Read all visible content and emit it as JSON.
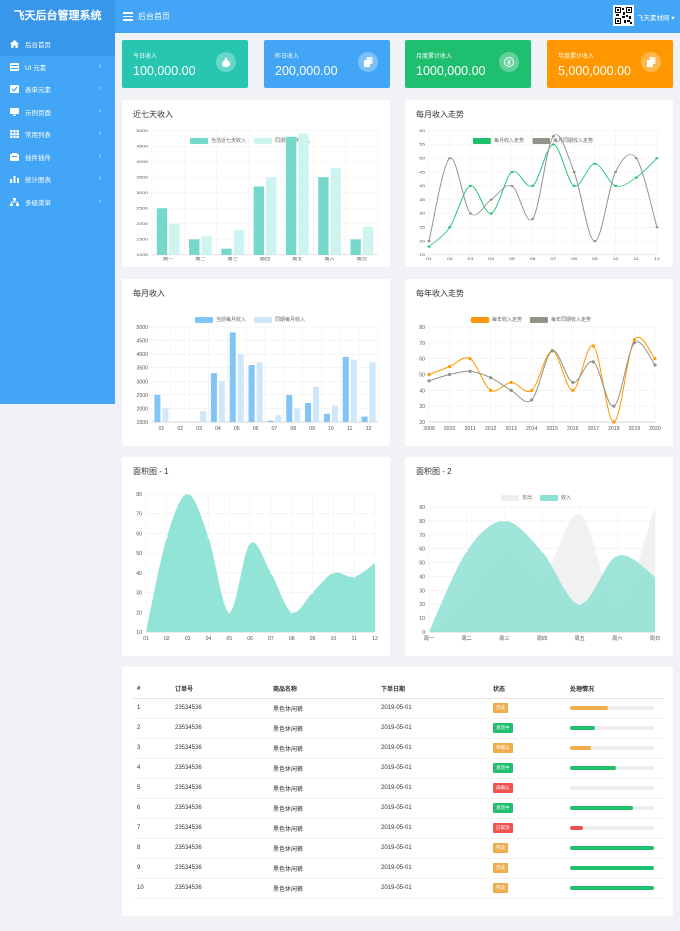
{
  "app": {
    "title": "飞天后台管理系统",
    "breadcrumb": "后台首页",
    "user": "飞天素材网"
  },
  "sidebar": {
    "items": [
      {
        "label": "后台首页",
        "icon": "home-icon",
        "arrow": false
      },
      {
        "label": "UI 元素",
        "icon": "ui-icon",
        "arrow": true
      },
      {
        "label": "表单元素",
        "icon": "form-icon",
        "arrow": true
      },
      {
        "label": "示例页面",
        "icon": "monitor-icon",
        "arrow": true
      },
      {
        "label": "常用列表",
        "icon": "table-icon",
        "arrow": true
      },
      {
        "label": "插件插件",
        "icon": "plugin-icon",
        "arrow": true
      },
      {
        "label": "统计图表",
        "icon": "chart-icon",
        "arrow": true
      },
      {
        "label": "多级菜单",
        "icon": "sitemap-icon",
        "arrow": true
      }
    ]
  },
  "stats": [
    {
      "label": "今日收入",
      "value": "100,000.00",
      "color": "#26c6b0",
      "icon": "money-bag-icon"
    },
    {
      "label": "昨日收入",
      "value": "200,000.00",
      "color": "#42a5f5",
      "icon": "copy-icon"
    },
    {
      "label": "月度累计收入",
      "value": "1000,000.00",
      "color": "#1ebf6f",
      "icon": "yen-icon"
    },
    {
      "label": "年度累计收入",
      "value": "5,000,000.00",
      "color": "#ff9800",
      "icon": "copy-icon"
    }
  ],
  "chart_data": [
    {
      "type": "bar",
      "title": "近七天收入",
      "categories": [
        "周一",
        "周二",
        "周三",
        "周四",
        "周五",
        "周六",
        "周日"
      ],
      "series": [
        {
          "name": "当前近七天收入",
          "values": [
            2500,
            1500,
            1200,
            3200,
            4800,
            3500,
            1500
          ],
          "color": "#74d8ca"
        },
        {
          "name": "同期近七天收入",
          "values": [
            2000,
            1600,
            1800,
            3500,
            4900,
            3800,
            1900
          ],
          "color": "#cdf4ee"
        }
      ],
      "ylim": [
        1000,
        5000
      ],
      "yticks": [
        1000,
        1500,
        2000,
        2500,
        3000,
        3500,
        4000,
        4500,
        5000
      ]
    },
    {
      "type": "line",
      "title": "每月收入走势",
      "categories": [
        "01",
        "02",
        "03",
        "04",
        "05",
        "06",
        "07",
        "08",
        "09",
        "10",
        "11",
        "12"
      ],
      "series": [
        {
          "name": "每月收入走势",
          "values": [
            18,
            25,
            40,
            30,
            45,
            40,
            55,
            40,
            48,
            40,
            43,
            50
          ],
          "color": "#1ebf6f"
        },
        {
          "name": "每月同期收入走势",
          "values": [
            20,
            50,
            30,
            35,
            40,
            28,
            58,
            45,
            20,
            45,
            50,
            25
          ],
          "color": "#909388"
        }
      ],
      "ylim": [
        15,
        60
      ],
      "yticks": [
        15,
        20,
        25,
        30,
        35,
        40,
        45,
        50,
        55,
        60
      ]
    },
    {
      "type": "bar",
      "title": "每月收入",
      "categories": [
        "01",
        "02",
        "03",
        "04",
        "05",
        "06",
        "07",
        "08",
        "09",
        "10",
        "11",
        "12"
      ],
      "series": [
        {
          "name": "当前每月收入",
          "values": [
            2500,
            1500,
            1500,
            3300,
            4800,
            3600,
            1550,
            2500,
            2200,
            1800,
            3900,
            1700
          ],
          "color": "#81c4f6"
        },
        {
          "name": "同期每月收入",
          "values": [
            2000,
            1500,
            1900,
            3000,
            4000,
            3700,
            1750,
            2000,
            2800,
            2100,
            3800,
            3700
          ],
          "color": "#cfe7fb"
        }
      ],
      "ylim": [
        1500,
        5000
      ],
      "yticks": [
        1500,
        2000,
        2500,
        3000,
        3500,
        4000,
        4500,
        5000
      ]
    },
    {
      "type": "line",
      "title": "每年收入走势",
      "categories": [
        "2009",
        "2010",
        "2011",
        "2012",
        "2013",
        "2014",
        "2015",
        "2016",
        "2017",
        "2018",
        "2019",
        "2020"
      ],
      "series": [
        {
          "name": "每年收入走势",
          "values": [
            50,
            55,
            60,
            40,
            45,
            40,
            65,
            40,
            68,
            20,
            72,
            60
          ],
          "color": "#ff9800"
        },
        {
          "name": "每年同期收入走势",
          "values": [
            46,
            50,
            52,
            48,
            40,
            34,
            65,
            45,
            58,
            30,
            70,
            56
          ],
          "color": "#909388"
        }
      ],
      "ylim": [
        20,
        80
      ],
      "yticks": [
        20,
        30,
        40,
        50,
        60,
        70,
        80
      ]
    },
    {
      "type": "area",
      "title": "面积图 - 1",
      "categories": [
        "01",
        "02",
        "03",
        "04",
        "05",
        "06",
        "07",
        "08",
        "09",
        "10",
        "11",
        "12"
      ],
      "series": [
        {
          "name": "",
          "values": [
            10,
            58,
            80,
            58,
            20,
            55,
            40,
            20,
            30,
            40,
            38,
            45
          ],
          "color": "#7fdfd0"
        }
      ],
      "ylim": [
        10,
        80
      ],
      "yticks": [
        10,
        20,
        30,
        40,
        50,
        60,
        70,
        80
      ]
    },
    {
      "type": "area",
      "title": "面积图 - 2",
      "categories": [
        "周一",
        "周二",
        "周三",
        "周四",
        "周五",
        "周六",
        "周日"
      ],
      "series": [
        {
          "name": "支出",
          "values": [
            0,
            25,
            60,
            40,
            85,
            20,
            90
          ],
          "color": "#eeeeee"
        },
        {
          "name": "收入",
          "values": [
            0,
            58,
            80,
            58,
            20,
            55,
            40
          ],
          "color": "#8ee0d4"
        }
      ],
      "ylim": [
        0,
        90
      ],
      "yticks": [
        0,
        10,
        20,
        30,
        40,
        50,
        60,
        70,
        80,
        90
      ]
    }
  ],
  "table": {
    "headers": [
      "#",
      "订单号",
      "商品名称",
      "下单日期",
      "状态",
      "处理情况"
    ],
    "rows": [
      {
        "n": "1",
        "order": "23534536",
        "name": "黑色休闲裤",
        "date": "2019-05-01",
        "status": "完成",
        "scolor": "#f0ad4e",
        "prog": 45,
        "pcolor": "#f0ad4e"
      },
      {
        "n": "2",
        "order": "23534536",
        "name": "黑色休闲裤",
        "date": "2019-05-01",
        "status": "发货中",
        "scolor": "#1ebf6f",
        "prog": 30,
        "pcolor": "#1ebf6f"
      },
      {
        "n": "3",
        "order": "23534536",
        "name": "黑色休闲裤",
        "date": "2019-05-01",
        "status": "待确认",
        "scolor": "#f0ad4e",
        "prog": 25,
        "pcolor": "#f0ad4e"
      },
      {
        "n": "4",
        "order": "23534536",
        "name": "黑色休闲裤",
        "date": "2019-05-01",
        "status": "发货中",
        "scolor": "#1ebf6f",
        "prog": 55,
        "pcolor": "#1ebf6f"
      },
      {
        "n": "5",
        "order": "23534536",
        "name": "黑色休闲裤",
        "date": "2019-05-01",
        "status": "再确认",
        "scolor": "#ef5350",
        "prog": 0,
        "pcolor": "#ef5350"
      },
      {
        "n": "6",
        "order": "23534536",
        "name": "黑色休闲裤",
        "date": "2019-05-01",
        "status": "发货中",
        "scolor": "#1ebf6f",
        "prog": 75,
        "pcolor": "#1ebf6f"
      },
      {
        "n": "7",
        "order": "23534536",
        "name": "黑色休闲裤",
        "date": "2019-05-01",
        "status": "已取消",
        "scolor": "#ef5350",
        "prog": 15,
        "pcolor": "#ef5350"
      },
      {
        "n": "8",
        "order": "23534536",
        "name": "黑色休闲裤",
        "date": "2019-05-01",
        "status": "完成",
        "scolor": "#f0ad4e",
        "prog": 100,
        "pcolor": "#1ebf6f"
      },
      {
        "n": "9",
        "order": "23534536",
        "name": "黑色休闲裤",
        "date": "2019-05-01",
        "status": "完成",
        "scolor": "#f0ad4e",
        "prog": 100,
        "pcolor": "#1ebf6f"
      },
      {
        "n": "10",
        "order": "23534536",
        "name": "黑色休闲裤",
        "date": "2019-05-01",
        "status": "完成",
        "scolor": "#f0ad4e",
        "prog": 100,
        "pcolor": "#1ebf6f"
      }
    ]
  }
}
